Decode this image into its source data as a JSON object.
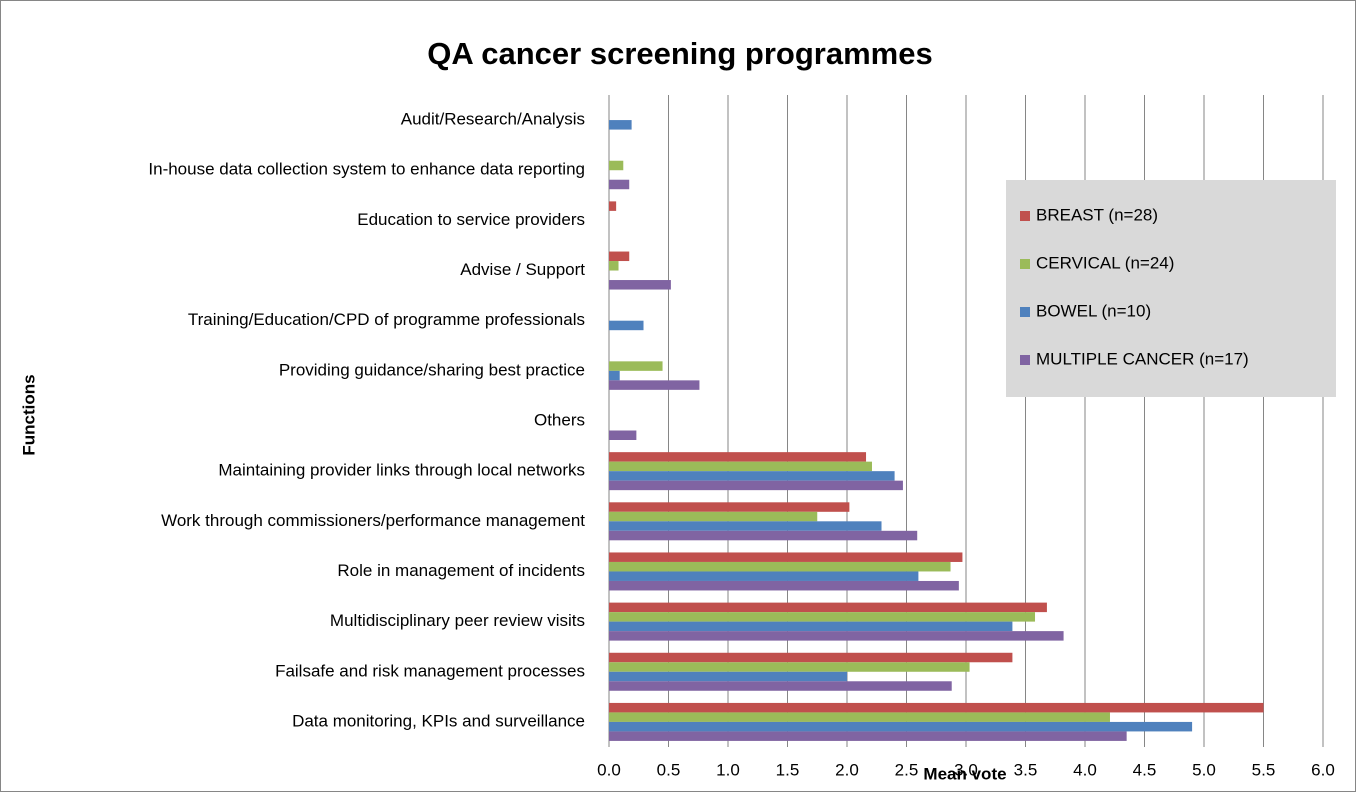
{
  "chart_data": {
    "type": "bar",
    "orientation": "horizontal",
    "title": "QA cancer screening programmes",
    "x_label": "Mean vote",
    "y_label": "Functions",
    "categories": [
      "Audit/Research/Analysis",
      "In-house data collection system to enhance data reporting",
      "Education to service providers",
      "Advise / Support",
      "Training/Education/CPD of programme professionals",
      "Providing guidance/sharing best practice",
      "Others",
      "Maintaining provider links through local networks",
      "Work through commissioners/performance management",
      "Role in management of incidents",
      "Multidisciplinary peer review visits",
      "Failsafe and risk management processes",
      "Data monitoring, KPIs and surveillance"
    ],
    "series": [
      {
        "name": "BREAST (n=28)",
        "color": "#c0504d",
        "values": [
          0,
          0,
          0.06,
          0.17,
          0,
          0,
          0,
          2.16,
          2.02,
          2.97,
          3.68,
          3.39,
          5.5
        ]
      },
      {
        "name": "CERVICAL (n=24)",
        "color": "#9bbb59",
        "values": [
          0,
          0.12,
          0,
          0.08,
          0,
          0.45,
          0,
          2.21,
          1.75,
          2.87,
          3.58,
          3.03,
          4.21
        ]
      },
      {
        "name": "BOWEL (n=10)",
        "color": "#4f81bd",
        "values": [
          0.19,
          0,
          0,
          0,
          0.29,
          0.09,
          0,
          2.4,
          2.29,
          2.6,
          3.39,
          2.0,
          4.9
        ]
      },
      {
        "name": "MULTIPLE CANCER (n=17)",
        "color": "#8064a2",
        "values": [
          0,
          0.17,
          0,
          0.52,
          0,
          0.76,
          0.23,
          2.47,
          2.59,
          2.94,
          3.82,
          2.88,
          4.35
        ]
      }
    ],
    "xlim": [
      0,
      6
    ],
    "xticks": [
      {
        "value": 0,
        "label": "0.0"
      },
      0.5,
      {
        "value": 1,
        "label": "1.0"
      },
      1.5,
      {
        "value": 2,
        "label": "2.0"
      },
      2.5,
      {
        "value": 3,
        "label": "3.0"
      },
      3.5,
      {
        "value": 4,
        "label": "4.0"
      },
      4.5,
      {
        "value": 5,
        "label": "5.0"
      },
      5.5,
      {
        "value": 6,
        "label": "6.0"
      }
    ],
    "grid": true,
    "legend": "right"
  }
}
